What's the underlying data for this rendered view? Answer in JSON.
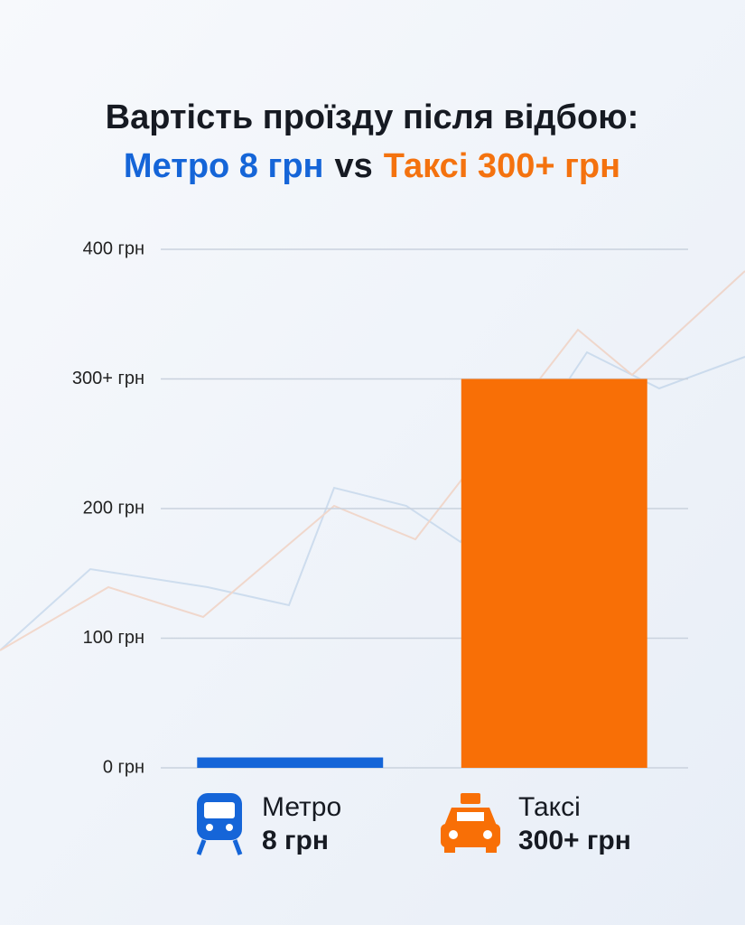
{
  "chart_data": {
    "type": "bar",
    "title": "Вартість проїзду після відбою:",
    "subtitle": [
      "Метро 8 грн",
      "vs",
      "Таксі 300+ грн"
    ],
    "subtitle_colors": [
      "#1565d8",
      "#161a22",
      "#f4720f"
    ],
    "categories": [
      "Метро",
      "Таксі"
    ],
    "values": [
      8,
      300
    ],
    "value_labels": [
      "8 грн",
      "300+ грн"
    ],
    "colors": [
      "#1565d8",
      "#f86f06"
    ],
    "ylim": [
      0,
      400
    ],
    "yticks": [
      {
        "value": 0,
        "label": "0 грн"
      },
      {
        "value": 100,
        "label": "100 грн"
      },
      {
        "value": 200,
        "label": "200 грн"
      },
      {
        "value": 300,
        "label": "300+ грн"
      },
      {
        "value": 400,
        "label": "400 грн"
      }
    ],
    "grid": true
  }
}
